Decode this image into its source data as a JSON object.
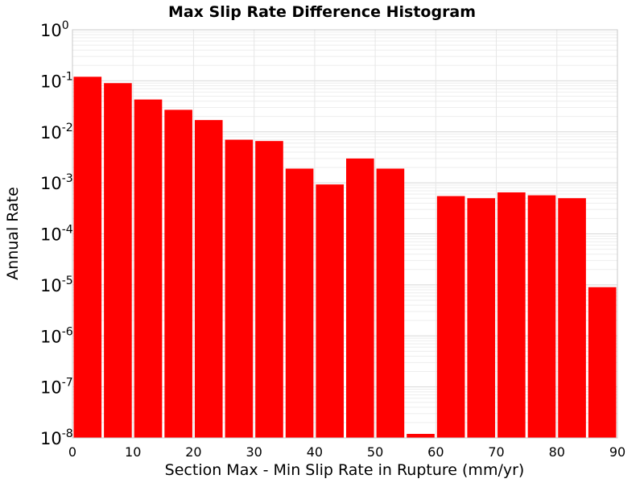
{
  "chart_data": {
    "type": "bar",
    "title": "Max Slip Rate Difference Histogram",
    "xlabel": "Section Max - Min Slip Rate in Rupture (mm/yr)",
    "ylabel": "Annual Rate",
    "yscale": "log",
    "xlim": [
      0,
      90
    ],
    "ylim": [
      1e-08,
      1
    ],
    "grid": true,
    "bar_color": "#ff0000",
    "bin_width": 5,
    "x_ticks": [
      0,
      10,
      20,
      30,
      40,
      50,
      60,
      70,
      80,
      90
    ],
    "y_ticks": [
      {
        "base": "10",
        "exp": "-8",
        "value": 1e-08
      },
      {
        "base": "10",
        "exp": "-7",
        "value": 1e-07
      },
      {
        "base": "10",
        "exp": "-6",
        "value": 1e-06
      },
      {
        "base": "10",
        "exp": "-5",
        "value": 1e-05
      },
      {
        "base": "10",
        "exp": "-4",
        "value": 0.0001
      },
      {
        "base": "10",
        "exp": "-3",
        "value": 0.001
      },
      {
        "base": "10",
        "exp": "-2",
        "value": 0.01
      },
      {
        "base": "10",
        "exp": "-1",
        "value": 0.1
      },
      {
        "base": "10",
        "exp": "0",
        "value": 1
      }
    ],
    "bins": [
      0,
      5,
      10,
      15,
      20,
      25,
      30,
      35,
      40,
      45,
      50,
      55,
      60,
      65,
      70,
      75,
      80,
      85
    ],
    "values": [
      0.12,
      0.09,
      0.043,
      0.027,
      0.017,
      0.007,
      0.0066,
      0.0019,
      0.00093,
      0.003,
      0.0019,
      1.2e-08,
      0.00055,
      0.0005,
      0.00065,
      0.00057,
      0.0005,
      9e-06
    ]
  }
}
